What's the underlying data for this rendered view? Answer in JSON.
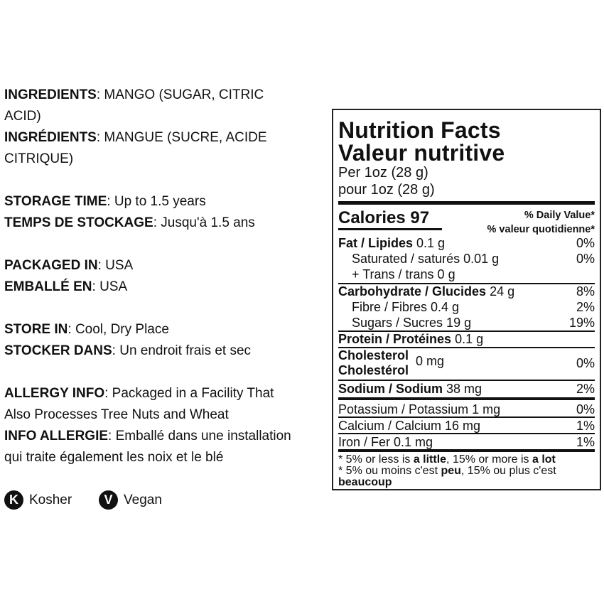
{
  "info": [
    {
      "label": "INGREDIENTS",
      "value": "MANGO (SUGAR, CITRIC"
    },
    {
      "label": "",
      "value": "ACID)"
    },
    {
      "label": "INGRÉDIENTS",
      "value": "MANGUE (SUCRE, ACIDE"
    },
    {
      "label": "",
      "value": "CITRIQUE)"
    },
    {
      "label": "STORAGE TIME",
      "value": "Up to 1.5 years"
    },
    {
      "label": "TEMPS DE STOCKAGE",
      "value": "Jusqu'à 1.5 ans"
    },
    {
      "label": "PACKAGED IN",
      "value": "USA"
    },
    {
      "label": "EMBALLÉ EN",
      "value": "USA"
    },
    {
      "label": "STORE IN",
      "value": "Cool, Dry Place"
    },
    {
      "label": "STOCKER DANS",
      "value": "Un endroit frais et sec"
    },
    {
      "label": "ALLERGY INFO",
      "value": "Packaged in a Facility That"
    },
    {
      "label": "",
      "value": "Also Processes Tree Nuts and Wheat"
    },
    {
      "label": "INFO ALLERGIE",
      "value": "Emballé dans une installation"
    },
    {
      "label": "",
      "value": "qui traite également les noix et le blé"
    }
  ],
  "badges": [
    {
      "letter": "K",
      "label": "Kosher"
    },
    {
      "letter": "V",
      "label": "Vegan"
    }
  ],
  "nutrition": {
    "title_en": "Nutrition Facts",
    "title_fr": "Valeur nutritive",
    "serving_en": "Per 1oz (28 g)",
    "serving_fr": "pour 1oz (28 g)",
    "calories_label": "Calories 97",
    "dv_en": "% Daily Value*",
    "dv_fr": "% valeur quotidienne*",
    "rows": [
      {
        "name": "Fat / Lipides",
        "amount": "0.1 g",
        "dv": "0%"
      },
      {
        "name": "Saturated / saturés 0.01 g",
        "amount": "",
        "dv": "0%"
      },
      {
        "name": "+ Trans / trans 0 g",
        "amount": "",
        "dv": ""
      },
      {
        "name": "Carbohydrate / Glucides",
        "amount": "24 g",
        "dv": "8%"
      },
      {
        "name": "Fibre / Fibres 0.4 g",
        "amount": "",
        "dv": "2%"
      },
      {
        "name": "Sugars / Sucres 19 g",
        "amount": "",
        "dv": "19%"
      },
      {
        "name": "Protein / Protéines",
        "amount": "0.1 g",
        "dv": ""
      },
      {
        "name": "Cholesterol",
        "name2": "Cholestérol",
        "amount": "0 mg",
        "dv": "0%"
      },
      {
        "name": "Sodium / Sodium",
        "amount": "38 mg",
        "dv": "2%"
      },
      {
        "name": "Potassium / Potassium 1 mg",
        "amount": "",
        "dv": "0%"
      },
      {
        "name": "Calcium / Calcium 16 mg",
        "amount": "",
        "dv": "1%"
      },
      {
        "name": "Iron / Fer 0.1 mg",
        "amount": "",
        "dv": "1%"
      }
    ],
    "footnote": {
      "en_a": "* 5% or less is ",
      "en_b": "a little",
      "en_c": ", 15% or more is ",
      "en_d": "a lot",
      "fr_a": "* 5% ou moins c'est ",
      "fr_b": "peu",
      "fr_c": ", 15% ou plus c'est",
      "fr_d": "beaucoup"
    }
  }
}
